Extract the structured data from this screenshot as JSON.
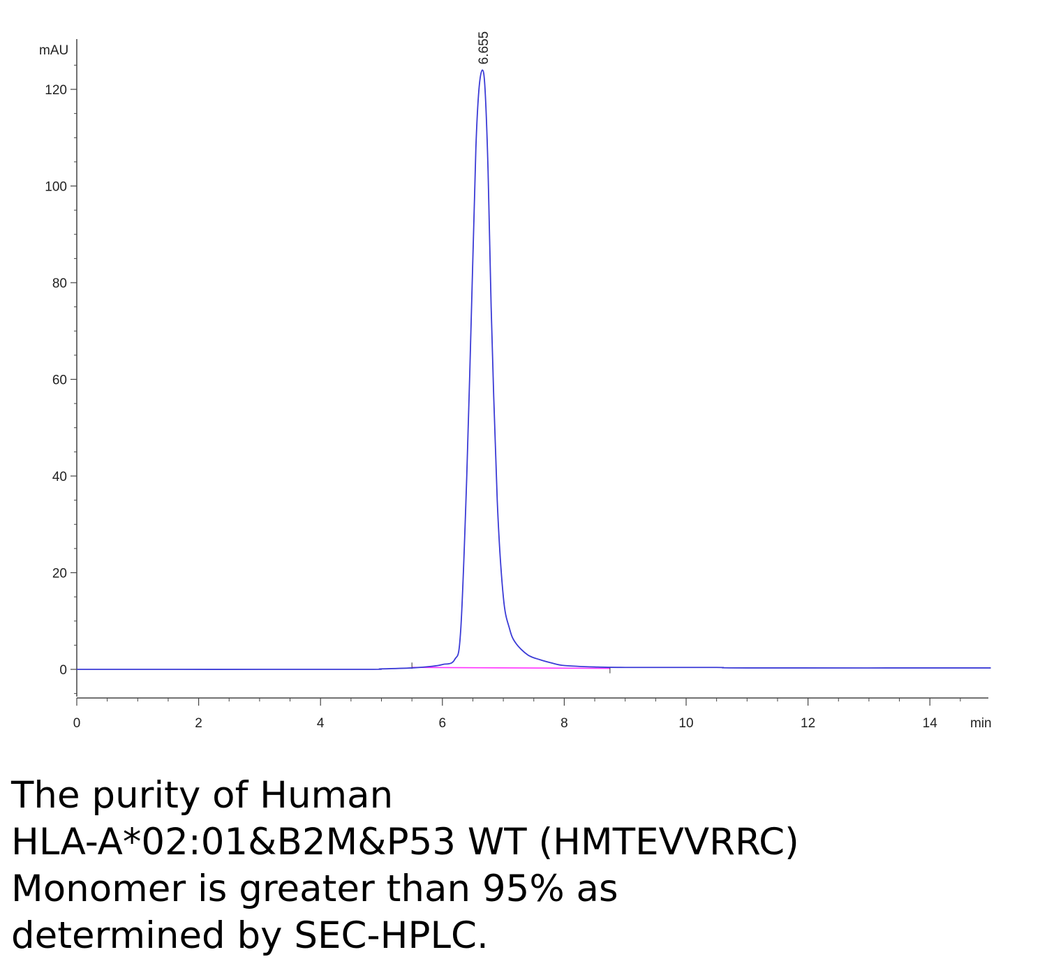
{
  "chart_data": {
    "type": "line",
    "title": "",
    "xlabel": "",
    "ylabel": "",
    "x_unit": "min",
    "y_unit": "mAU",
    "xlim": [
      0,
      15
    ],
    "ylim": [
      -6,
      130
    ],
    "x_ticks": [
      0,
      2,
      4,
      6,
      8,
      10,
      12,
      14
    ],
    "y_ticks": [
      0,
      20,
      40,
      60,
      80,
      100,
      120
    ],
    "grid": false,
    "series": [
      {
        "name": "",
        "color": "#3b3bd6",
        "x": [
          0,
          4.5,
          5.0,
          5.5,
          5.8,
          6.0,
          6.2,
          6.3,
          6.4,
          6.5,
          6.55,
          6.6,
          6.655,
          6.7,
          6.75,
          6.8,
          6.9,
          7.0,
          7.1,
          7.2,
          7.4,
          7.6,
          7.8,
          8.0,
          8.5,
          9.0,
          10.5,
          11.0,
          15.0
        ],
        "y": [
          0,
          0,
          0.1,
          0.3,
          0.6,
          1.0,
          2.0,
          8.0,
          40,
          85,
          108,
          120,
          124,
          120,
          103,
          75,
          35,
          15,
          8.5,
          5.5,
          3.0,
          2.0,
          1.3,
          0.8,
          0.5,
          0.4,
          0.4,
          0.3,
          0.3
        ]
      }
    ],
    "baseline": {
      "color": "#ff33ff",
      "x": [
        5.5,
        8.75
      ],
      "y": [
        0.4,
        0.2
      ]
    },
    "annotations": [
      {
        "text": "6.655",
        "x": 6.655
      }
    ]
  },
  "caption": {
    "lines": [
      "The purity of Human",
      "HLA-A*02:01&B2M&P53 WT (HMTEVVRRC)",
      "Monomer is greater than 95% as",
      "determined by SEC-HPLC."
    ]
  }
}
